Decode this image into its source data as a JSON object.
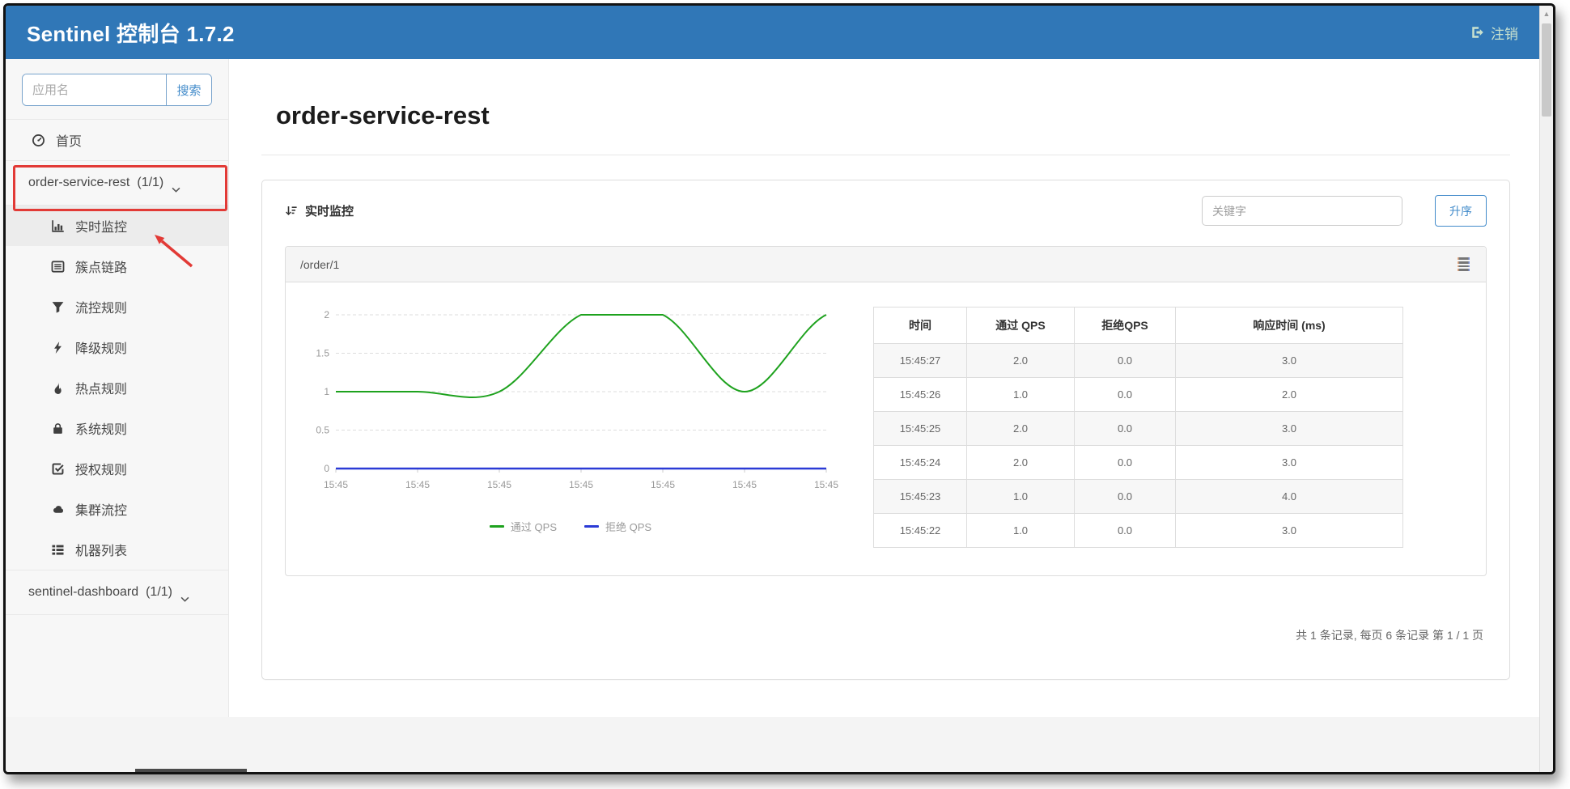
{
  "navbar": {
    "title": "Sentinel 控制台 1.7.2",
    "logout": "注销"
  },
  "sidebar": {
    "search": {
      "placeholder": "应用名",
      "button": "搜索"
    },
    "items": [
      {
        "label": "首页",
        "icon": "gauge-icon"
      },
      {
        "label": "order-service-rest",
        "badge": "(1/1)",
        "expanded": true,
        "annotated": true
      },
      {
        "label": "实时监控",
        "icon": "bar-chart-icon",
        "active": true
      },
      {
        "label": "簇点链路",
        "icon": "cluster-list-icon"
      },
      {
        "label": "流控规则",
        "icon": "filter-icon"
      },
      {
        "label": "降级规则",
        "icon": "bolt-icon"
      },
      {
        "label": "热点规则",
        "icon": "fire-icon"
      },
      {
        "label": "系统规则",
        "icon": "lock-icon"
      },
      {
        "label": "授权规则",
        "icon": "check-square-icon"
      },
      {
        "label": "集群流控",
        "icon": "cloud-icon"
      },
      {
        "label": "机器列表",
        "icon": "machine-list-icon"
      },
      {
        "label": "sentinel-dashboard",
        "badge": "(1/1)",
        "expanded": true
      }
    ]
  },
  "main": {
    "page_title": "order-service-rest",
    "panel": {
      "title": "实时监控",
      "search_placeholder": "关键字",
      "sort_button": "升序"
    },
    "card": {
      "title": "/order/1"
    },
    "pagination": "共 1 条记录, 每页 6 条记录 第 1 / 1 页"
  },
  "chart_data": {
    "type": "line",
    "x_labels": [
      "15:45",
      "15:45",
      "15:45",
      "15:45",
      "15:45",
      "15:45",
      "15:45"
    ],
    "series": [
      {
        "name": "通过 QPS",
        "color": "#1ea21e",
        "values": [
          1,
          1,
          1,
          2,
          2,
          1,
          2
        ]
      },
      {
        "name": "拒绝 QPS",
        "color": "#2b3bd6",
        "values": [
          0,
          0,
          0,
          0,
          0,
          0,
          0
        ]
      }
    ],
    "ylim": [
      0,
      2
    ],
    "yticks": [
      0,
      0.5,
      1,
      1.5,
      2
    ],
    "grid": "dashed-horizontal",
    "legend_position": "bottom",
    "smooth": true
  },
  "table": {
    "headers": [
      "时间",
      "通过 QPS",
      "拒绝QPS",
      "响应时间 (ms)"
    ],
    "rows": [
      [
        "15:45:27",
        "2.0",
        "0.0",
        "3.0"
      ],
      [
        "15:45:26",
        "1.0",
        "0.0",
        "2.0"
      ],
      [
        "15:45:25",
        "2.0",
        "0.0",
        "3.0"
      ],
      [
        "15:45:24",
        "2.0",
        "0.0",
        "3.0"
      ],
      [
        "15:45:23",
        "1.0",
        "0.0",
        "4.0"
      ],
      [
        "15:45:22",
        "1.0",
        "0.0",
        "3.0"
      ]
    ]
  },
  "colors": {
    "navbar_bg": "#3077b7",
    "link_blue": "#428bca",
    "pass_qps_green": "#1ea21e",
    "block_qps_blue": "#2b3bd6",
    "annotation_red": "#e23a36"
  }
}
